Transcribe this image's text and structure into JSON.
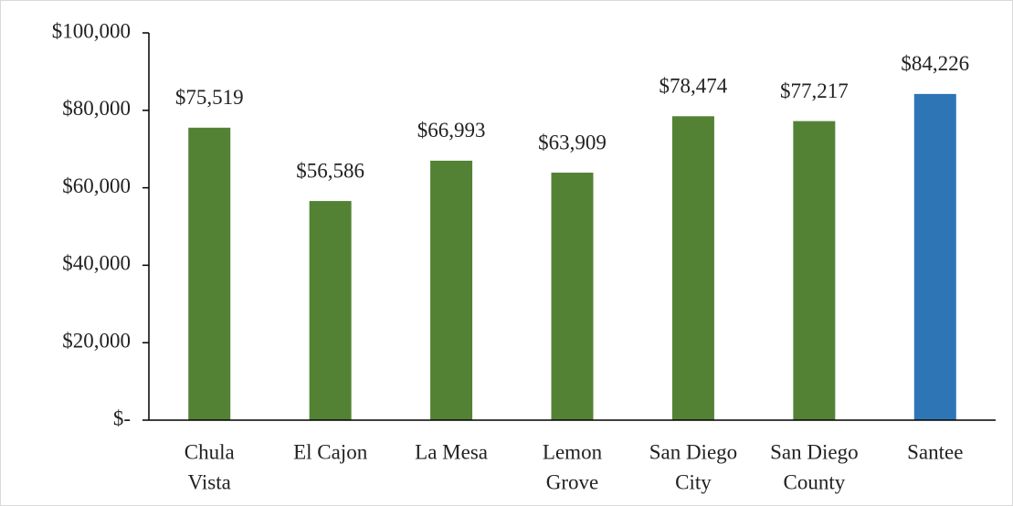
{
  "chart_data": {
    "type": "bar",
    "categories": [
      [
        "Chula",
        "Vista"
      ],
      [
        "El Cajon"
      ],
      [
        "La Mesa"
      ],
      [
        "Lemon",
        "Grove"
      ],
      [
        "San Diego",
        "City"
      ],
      [
        "San Diego",
        "County"
      ],
      [
        "Santee"
      ]
    ],
    "values": [
      75519,
      56586,
      66993,
      63909,
      78474,
      77217,
      84226
    ],
    "value_labels": [
      "$75,519",
      "$56,586",
      "$66,993",
      "$63,909",
      "$78,474",
      "$77,217",
      "$84,226"
    ],
    "colors": [
      "#548235",
      "#548235",
      "#548235",
      "#548235",
      "#548235",
      "#548235",
      "#2e75b6"
    ],
    "ylim": [
      0,
      100000
    ],
    "yticks": [
      {
        "value": 0,
        "label": "$-"
      },
      {
        "value": 20000,
        "label": "$20,000"
      },
      {
        "value": 40000,
        "label": "$40,000"
      },
      {
        "value": 60000,
        "label": "$60,000"
      },
      {
        "value": 80000,
        "label": "$80,000"
      },
      {
        "value": 100000,
        "label": "$100,000"
      }
    ],
    "grid": false
  }
}
